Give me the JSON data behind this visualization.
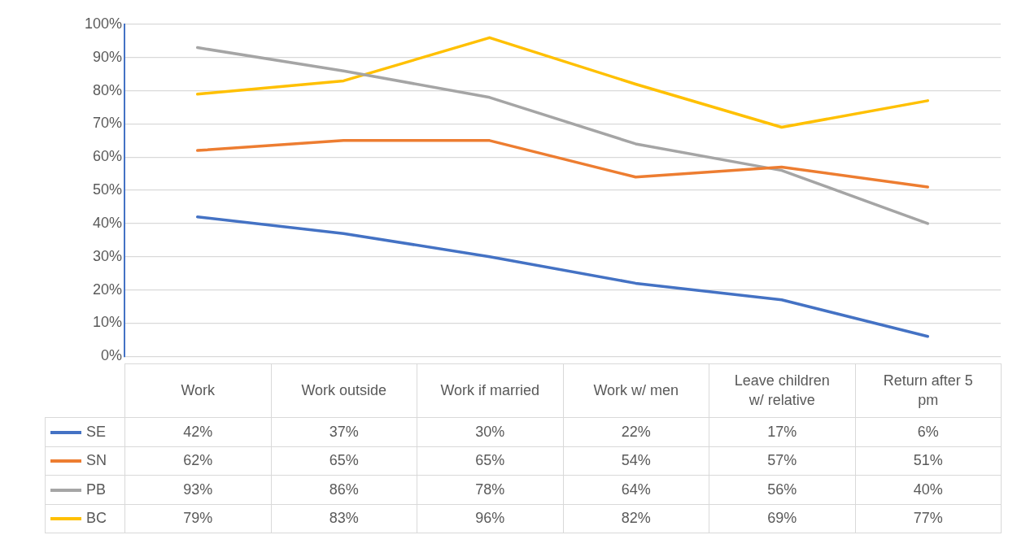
{
  "chart_data": {
    "type": "line",
    "categories": [
      "Work",
      "Work outside",
      "Work if married",
      "Work w/ men",
      "Leave children w/ relative",
      "Return after 5 pm"
    ],
    "series": [
      {
        "name": "SE",
        "color": "#4472c4",
        "values": [
          42,
          37,
          30,
          22,
          17,
          6
        ],
        "value_labels": [
          "42%",
          "37%",
          "30%",
          "22%",
          "17%",
          "6%"
        ]
      },
      {
        "name": "SN",
        "color": "#ed7d31",
        "values": [
          62,
          65,
          65,
          54,
          57,
          51
        ],
        "value_labels": [
          "62%",
          "65%",
          "65%",
          "54%",
          "57%",
          "51%"
        ]
      },
      {
        "name": "PB",
        "color": "#a5a5a5",
        "values": [
          93,
          86,
          78,
          64,
          56,
          40
        ],
        "value_labels": [
          "93%",
          "86%",
          "78%",
          "64%",
          "56%",
          "40%"
        ]
      },
      {
        "name": "BC",
        "color": "#ffc000",
        "values": [
          79,
          83,
          96,
          82,
          69,
          77
        ],
        "value_labels": [
          "79%",
          "83%",
          "96%",
          "82%",
          "69%",
          "77%"
        ]
      }
    ],
    "ylim": [
      0,
      100
    ],
    "yticks": [
      {
        "value": 0,
        "label": "0%"
      },
      {
        "value": 10,
        "label": "10%"
      },
      {
        "value": 20,
        "label": "20%"
      },
      {
        "value": 30,
        "label": "30%"
      },
      {
        "value": 40,
        "label": "40%"
      },
      {
        "value": 50,
        "label": "50%"
      },
      {
        "value": 60,
        "label": "60%"
      },
      {
        "value": 70,
        "label": "70%"
      },
      {
        "value": 80,
        "label": "80%"
      },
      {
        "value": 90,
        "label": "90%"
      },
      {
        "value": 100,
        "label": "100%"
      }
    ],
    "grid": "y",
    "legend": "bottom left",
    "marker": "none",
    "line_style": "solid"
  }
}
